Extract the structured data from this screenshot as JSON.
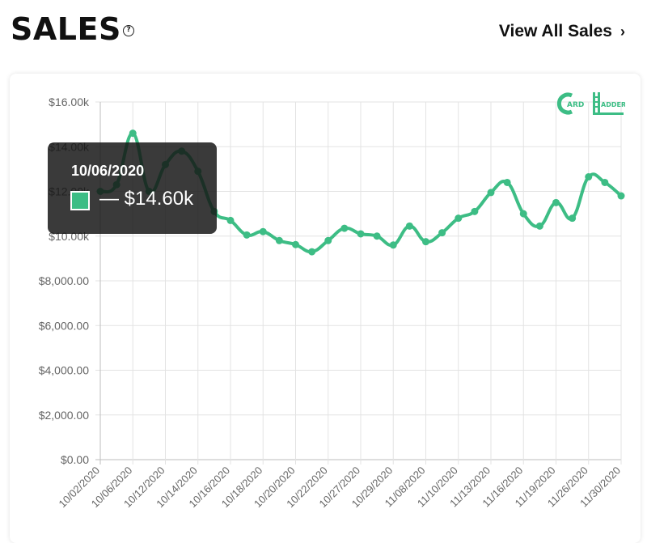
{
  "header": {
    "title": "SALES",
    "help_icon": "question-circle-icon",
    "view_all_label": "View All Sales",
    "view_all_icon": "chevron-right-icon"
  },
  "logo": {
    "text_1": "ARD",
    "text_2": "ADDER",
    "color": "#3dbd85"
  },
  "tooltip": {
    "date": "10/06/2020",
    "value": "— $14.60k",
    "swatch_color": "#3dbd85"
  },
  "colors": {
    "line": "#3dbd85",
    "grid": "#e3e3e3",
    "axis_text": "#666666"
  },
  "chart_data": {
    "type": "line",
    "title": "",
    "xlabel": "",
    "ylabel": "",
    "ylim": [
      0,
      16000
    ],
    "grid": true,
    "legend": "none",
    "y_ticks": [
      "$0.00",
      "$2,000.00",
      "$4,000.00",
      "$6,000.00",
      "$8,000.00",
      "$10.00k",
      "$12.00k",
      "$14.00k",
      "$16.00k"
    ],
    "x_ticks": [
      "10/02/2020",
      "10/06/2020",
      "10/12/2020",
      "10/14/2020",
      "10/16/2020",
      "10/18/2020",
      "10/20/2020",
      "10/22/2020",
      "10/27/2020",
      "10/29/2020",
      "11/08/2020",
      "11/10/2020",
      "11/13/2020",
      "11/16/2020",
      "11/19/2020",
      "11/26/2020",
      "11/30/2020"
    ],
    "series": [
      {
        "values": [
          12000,
          12300,
          14600,
          12000,
          13200,
          13800,
          12900,
          11100,
          10700,
          10050,
          10200,
          9800,
          9620,
          9300,
          9800,
          10350,
          10100,
          10000,
          9600,
          10450,
          9750,
          10150,
          10800,
          11100,
          11950,
          12400,
          11000,
          10450,
          11500,
          10800,
          12650,
          12400,
          11800
        ]
      }
    ]
  }
}
